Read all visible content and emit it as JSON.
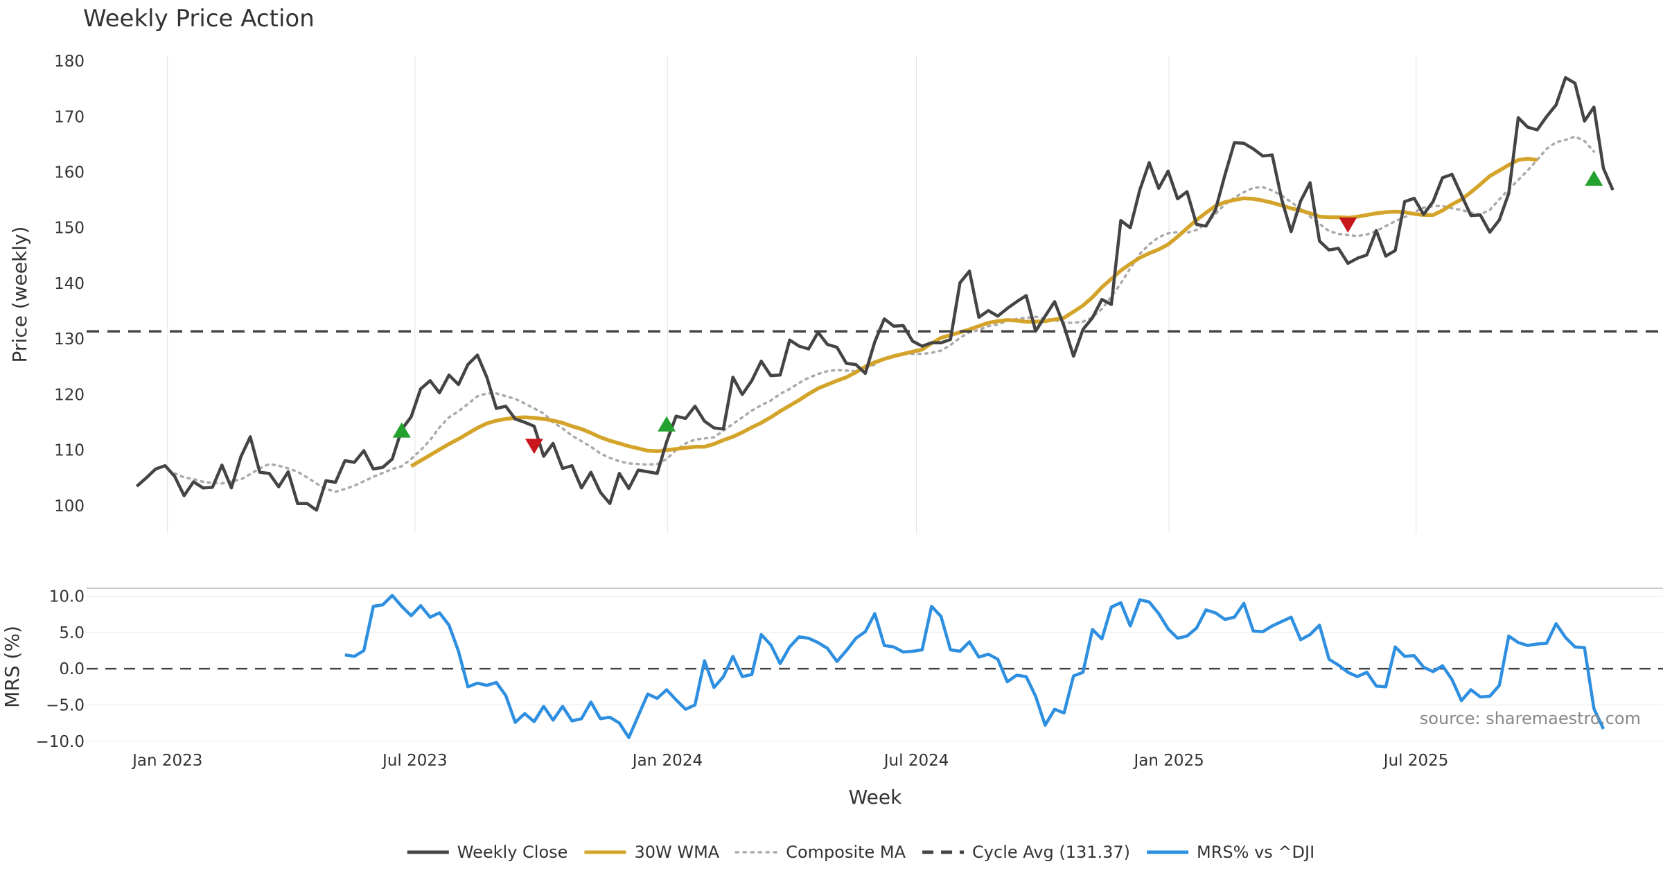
{
  "chart_data": {
    "type": "line",
    "title": "Weekly Price Action",
    "source": "source: sharemaestro.com",
    "xlabel": "Week",
    "x_ticks": [
      "Jan 2023",
      "Jul 2023",
      "Jan 2024",
      "Jul 2024",
      "Jan 2025",
      "Jul 2025"
    ],
    "x_tick_positions": [
      3.25,
      29.4,
      56.1,
      82.4,
      109.1,
      135.2
    ],
    "x_range": [
      -5.3,
      161.3
    ],
    "price_panel": {
      "ylabel": "Price (weekly)",
      "ylim": [
        95,
        181
      ],
      "yticks": [
        100,
        110,
        120,
        130,
        140,
        150,
        160,
        170,
        180
      ],
      "series": [
        {
          "name": "Weekly Close",
          "color": "#444444",
          "style": "solid",
          "start": 0,
          "values": [
            103.5,
            105,
            106.6,
            107.2,
            105.3,
            101.8,
            104.3,
            103.2,
            103.3,
            107.3,
            103.2,
            108.8,
            112.4,
            106,
            105.8,
            103.4,
            106.1,
            100.4,
            100.4,
            99.2,
            104.5,
            104.2,
            108.1,
            107.8,
            109.9,
            106.6,
            106.9,
            108.4,
            113.7,
            116,
            121,
            122.5,
            120.3,
            123.5,
            121.8,
            125.4,
            127.1,
            123.1,
            117.5,
            117.9,
            115.6,
            115,
            114.3,
            108.9,
            111.2,
            106.7,
            107.2,
            103.2,
            106,
            102.4,
            100.4,
            105.8,
            103.1,
            106.4,
            106.1,
            105.8,
            111.5,
            116.1,
            115.7,
            117.9,
            115.2,
            114,
            113.8,
            123.1,
            120,
            122.5,
            126,
            123.4,
            123.5,
            129.8,
            128.7,
            128.2,
            131.2,
            129,
            128.5,
            125.6,
            125.4,
            123.8,
            129.5,
            133.6,
            132.3,
            132.4,
            129.6,
            128.7,
            129.3,
            129.3,
            129.9,
            140.1,
            142.2,
            133.9,
            135.1,
            134.1,
            135.5,
            136.7,
            137.8,
            131.4,
            134.1,
            136.7,
            132.3,
            126.9,
            131.7,
            133.8,
            137.1,
            136.2,
            151.3,
            150,
            156.8,
            161.7,
            157.1,
            160.2,
            155.2,
            156.5,
            150.6,
            150.3,
            153.2,
            159.5,
            165.3,
            165.2,
            164.2,
            162.9,
            163.1,
            155.1,
            149.3,
            154.8,
            158.1,
            147.6,
            146,
            146.3,
            143.6,
            144.5,
            145.1,
            149.5,
            144.9,
            145.9,
            154.7,
            155.3,
            152.4,
            154.7,
            159,
            159.6,
            155.9,
            152.2,
            152.3,
            149.2,
            151.4,
            156.2,
            169.8,
            168.1,
            167.6,
            170,
            172.1,
            177,
            176,
            169.2,
            171.7,
            160.7,
            156.8
          ]
        },
        {
          "name": "30W WMA",
          "color": "#D4A42A",
          "style": "solid",
          "start": 29,
          "values": [
            107.1,
            108.1,
            109.1,
            110.1,
            111.1,
            112,
            113,
            114,
            114.8,
            115.3,
            115.6,
            115.8,
            115.9,
            115.8,
            115.6,
            115.3,
            114.9,
            114.3,
            113.8,
            113.1,
            112.3,
            111.7,
            111.2,
            110.7,
            110.3,
            109.9,
            109.8,
            110,
            110.2,
            110.4,
            110.6,
            110.6,
            111.1,
            111.8,
            112.4,
            113.2,
            114.1,
            114.9,
            115.9,
            117,
            118,
            119,
            120.1,
            121.1,
            121.8,
            122.5,
            123.1,
            124,
            125,
            125.8,
            126.4,
            126.9,
            127.3,
            127.7,
            128.1,
            129.2,
            130.2,
            130.7,
            131.2,
            131.7,
            132.3,
            132.9,
            133.2,
            133.4,
            133.3,
            133.1,
            133.1,
            133.2,
            133.5,
            133.8,
            134.9,
            136,
            137.5,
            139.3,
            140.8,
            142.3,
            143.5,
            144.6,
            145.4,
            146.1,
            147,
            148.4,
            149.9,
            151.4,
            152.7,
            153.9,
            154.6,
            155,
            155.3,
            155.2,
            154.9,
            154.5,
            154,
            153.5,
            153.1,
            152.6,
            152,
            151.9,
            151.9,
            151.8,
            152,
            152.3,
            152.6,
            152.8,
            152.9,
            152.8,
            152.5,
            152.3,
            152.3,
            153.1,
            154.2,
            155.1,
            156.4,
            157.8,
            159.3,
            160.3,
            161.3,
            162.2,
            162.4,
            162.2
          ]
        },
        {
          "name": "Composite MA",
          "color": "#AAAAAA",
          "style": "dotted",
          "start": 4,
          "values": [
            105.8,
            105.1,
            104.8,
            104.3,
            104.1,
            104,
            104.4,
            104.7,
            105.7,
            106.7,
            107.5,
            107.2,
            106.7,
            106.1,
            105.1,
            104,
            103,
            102.5,
            103,
            103.6,
            104.4,
            105.2,
            105.9,
            106.6,
            107.1,
            108.4,
            110,
            111.8,
            114.1,
            115.9,
            117,
            118.3,
            119.7,
            120.2,
            120.2,
            119.7,
            119.2,
            118.4,
            117.5,
            116.6,
            115,
            113.9,
            112.6,
            111.6,
            110.6,
            109.4,
            108.6,
            108,
            107.6,
            107.5,
            107.4,
            107.5,
            108.4,
            110,
            111.2,
            111.9,
            112.1,
            112.3,
            113.5,
            114.7,
            115.9,
            117.1,
            118.1,
            118.9,
            120.1,
            121,
            122.1,
            123,
            123.7,
            124.2,
            124.4,
            124.3,
            124.2,
            124.7,
            125.4,
            126.5,
            127,
            127.3,
            127.3,
            127.3,
            127.5,
            127.9,
            128.9,
            130.2,
            131.2,
            131.6,
            132.3,
            132.6,
            133.3,
            133.6,
            133.8,
            134,
            133.6,
            133.4,
            132.9,
            132.9,
            133.1,
            133.9,
            135.4,
            137.6,
            140,
            142.7,
            145.3,
            147,
            148.3,
            149,
            149.2,
            149.1,
            149.6,
            150.7,
            152.5,
            154.2,
            155.4,
            156.4,
            157.2,
            157.3,
            156.7,
            155.8,
            154.6,
            153.4,
            152,
            150.7,
            149.4,
            148.9,
            148.7,
            148.5,
            148.8,
            149.4,
            150.3,
            151.2,
            151.9,
            152.8,
            153.6,
            153.9,
            153.9,
            153.5,
            153.2,
            152.7,
            152.4,
            153.2,
            155.1,
            156.9,
            158.6,
            160.3,
            162.2,
            164.2,
            165.4,
            165.8,
            166.4,
            165.6,
            163.7
          ]
        },
        {
          "name": "Cycle Avg (131.37)",
          "color": "#444444",
          "style": "dashed",
          "value": 131.37
        }
      ],
      "markers": [
        {
          "type": "buy",
          "index": 28,
          "value": 113.5
        },
        {
          "type": "sell",
          "index": 42,
          "value": 110.8
        },
        {
          "type": "buy",
          "index": 56,
          "value": 114.6
        },
        {
          "type": "sell",
          "index": 128,
          "value": 150.6
        },
        {
          "type": "buy",
          "index": 154,
          "value": 158.8
        }
      ]
    },
    "mrs_panel": {
      "ylabel": "MRS (%)",
      "ylim": [
        -10.5,
        11
      ],
      "yticks": [
        -10,
        -5,
        0,
        5,
        10
      ],
      "ytick_labels": [
        "−10.0",
        "−5.0",
        "0.0",
        "5.0",
        "10.0"
      ],
      "series": [
        {
          "name": "MRS% vs ^DJI",
          "color": "#2E8FE0",
          "style": "solid",
          "start": 22,
          "values": [
            1.9,
            1.7,
            2.5,
            8.6,
            8.8,
            10.1,
            8.6,
            7.3,
            8.7,
            7.1,
            7.7,
            6,
            2.4,
            -2.5,
            -2,
            -2.3,
            -1.9,
            -3.7,
            -7.4,
            -6.2,
            -7.3,
            -5.2,
            -7.1,
            -5.2,
            -7.2,
            -6.9,
            -4.6,
            -6.9,
            -6.7,
            -7.5,
            -9.5,
            -6.5,
            -3.5,
            -4.1,
            -2.9,
            -4.3,
            -5.6,
            -5,
            1.1,
            -2.6,
            -1.1,
            1.7,
            -1.1,
            -0.8,
            4.7,
            3.3,
            0.7,
            3,
            4.4,
            4.2,
            3.6,
            2.8,
            1,
            2.5,
            4.2,
            5.1,
            7.6,
            3.2,
            3,
            2.3,
            2.4,
            2.6,
            8.6,
            7.2,
            2.6,
            2.4,
            3.7,
            1.6,
            2,
            1.3,
            -1.8,
            -0.9,
            -1.1,
            -3.8,
            -7.8,
            -5.6,
            -6.1,
            -1,
            -0.5,
            5.4,
            4.1,
            8.5,
            9.1,
            5.9,
            9.5,
            9.2,
            7.6,
            5.5,
            4.2,
            4.5,
            5.6,
            8.1,
            7.7,
            6.8,
            7.1,
            9,
            5.2,
            5.1,
            5.9,
            6.5,
            7.1,
            4,
            4.7,
            6,
            1.3,
            0.5,
            -0.5,
            -1.1,
            -0.5,
            -2.4,
            -2.5,
            3,
            1.7,
            1.8,
            0.2,
            -0.4,
            0.4,
            -1.5,
            -4.4,
            -2.9,
            -3.9,
            -3.8,
            -2.3,
            4.5,
            3.6,
            3.2,
            3.4,
            3.5,
            6.2,
            4.3,
            3,
            2.9,
            -5.5,
            -8.3
          ]
        }
      ],
      "zero_line": 0
    },
    "legend": [
      {
        "label": "Weekly Close",
        "color": "#444444",
        "style": "solid"
      },
      {
        "label": "30W WMA",
        "color": "#D4A42A",
        "style": "solid"
      },
      {
        "label": "Composite MA",
        "color": "#AAAAAA",
        "style": "dotted"
      },
      {
        "label": "Cycle Avg (131.37)",
        "color": "#444444",
        "style": "dashed"
      },
      {
        "label": "MRS% vs ^DJI",
        "color": "#2E8FE0",
        "style": "solid"
      }
    ],
    "legend_position": "bottom-center",
    "grid": true
  }
}
